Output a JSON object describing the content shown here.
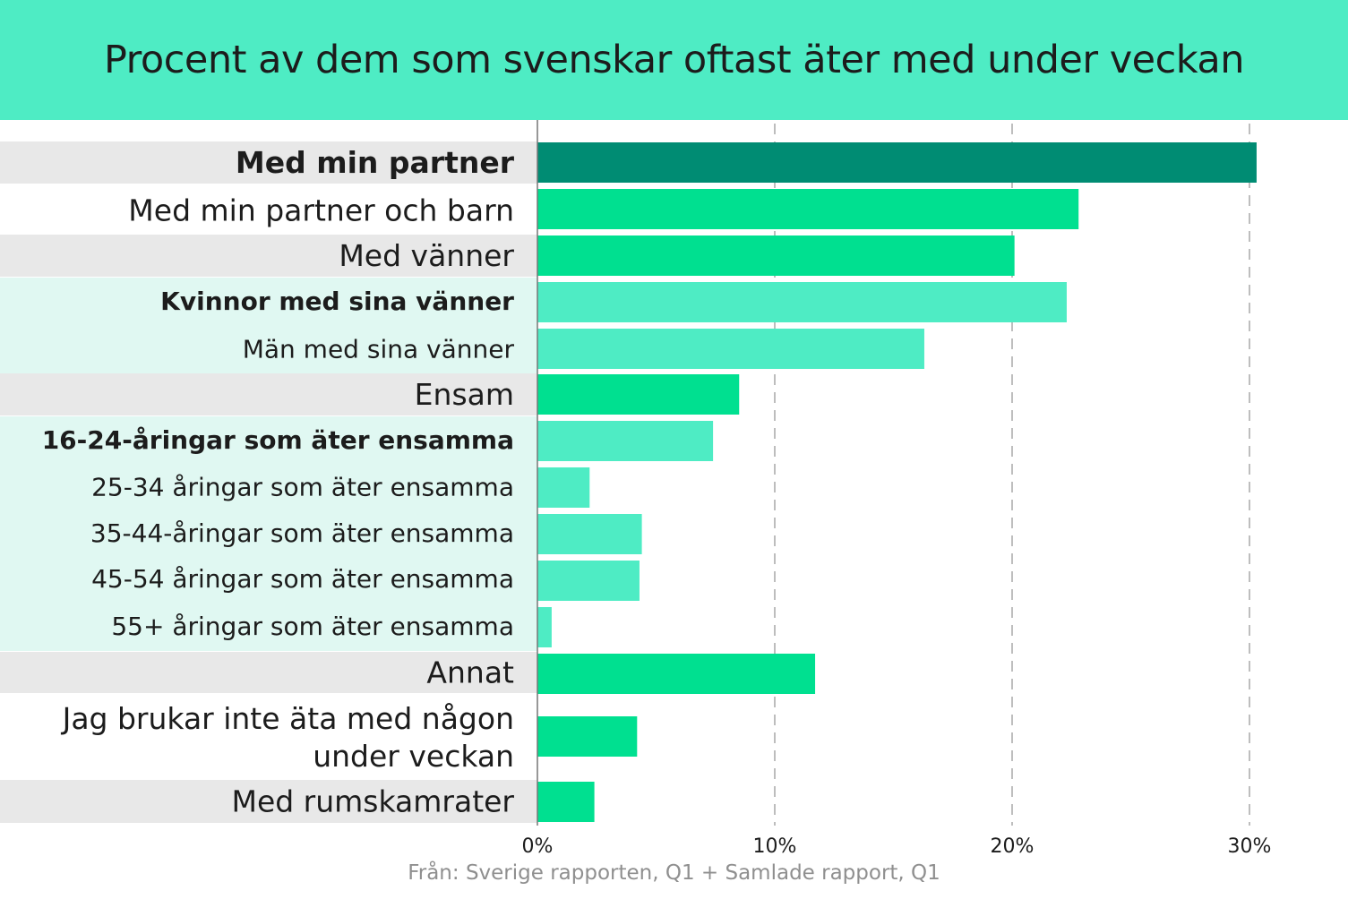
{
  "chart_data": {
    "type": "bar",
    "orientation": "horizontal",
    "title": "Procent av dem som svenskar oftast äter med under veckan",
    "source": "Från: Sverige rapporten, Q1 + Samlade rapport, Q1",
    "categories": [
      "Med min partner",
      "Med min partner och barn",
      "Med vänner",
      "Kvinnor med sina vänner",
      "Män med sina vänner",
      "Ensam",
      "16-24-åringar som äter ensamma",
      "25-34 åringar som äter ensamma",
      "35-44-åringar som äter ensamma",
      "45-54 åringar som äter ensamma",
      "55+ åringar som äter ensamma",
      "Annat",
      "Jag brukar inte äta med någon under veckan",
      "Med rumskamrater"
    ],
    "values": [
      30.3,
      22.8,
      20.1,
      22.3,
      16.3,
      8.5,
      7.4,
      2.2,
      4.4,
      4.3,
      0.6,
      11.7,
      4.2,
      2.4
    ],
    "kinds": [
      "highlight",
      "main",
      "main",
      "sub-bold",
      "sub",
      "main",
      "sub-bold",
      "sub",
      "sub",
      "sub",
      "sub",
      "main",
      "main",
      "main"
    ],
    "xlim": [
      0,
      30
    ],
    "x_ticks": [
      0,
      10,
      20,
      30
    ],
    "x_tick_labels": [
      "0%",
      "10%",
      "20%",
      "30%"
    ],
    "grid": "vertical-dashed",
    "colors": {
      "header_bg": "#4eecc4",
      "bar_highlight": "#008c73",
      "bar_main": "#00e090",
      "bar_sub": "#4eecc4",
      "row_grey": "#e8e8e8",
      "row_mint": "#e0f8f2",
      "grid": "#9a9a9a",
      "axis": "#777777",
      "text": "#1c1c1c"
    }
  }
}
